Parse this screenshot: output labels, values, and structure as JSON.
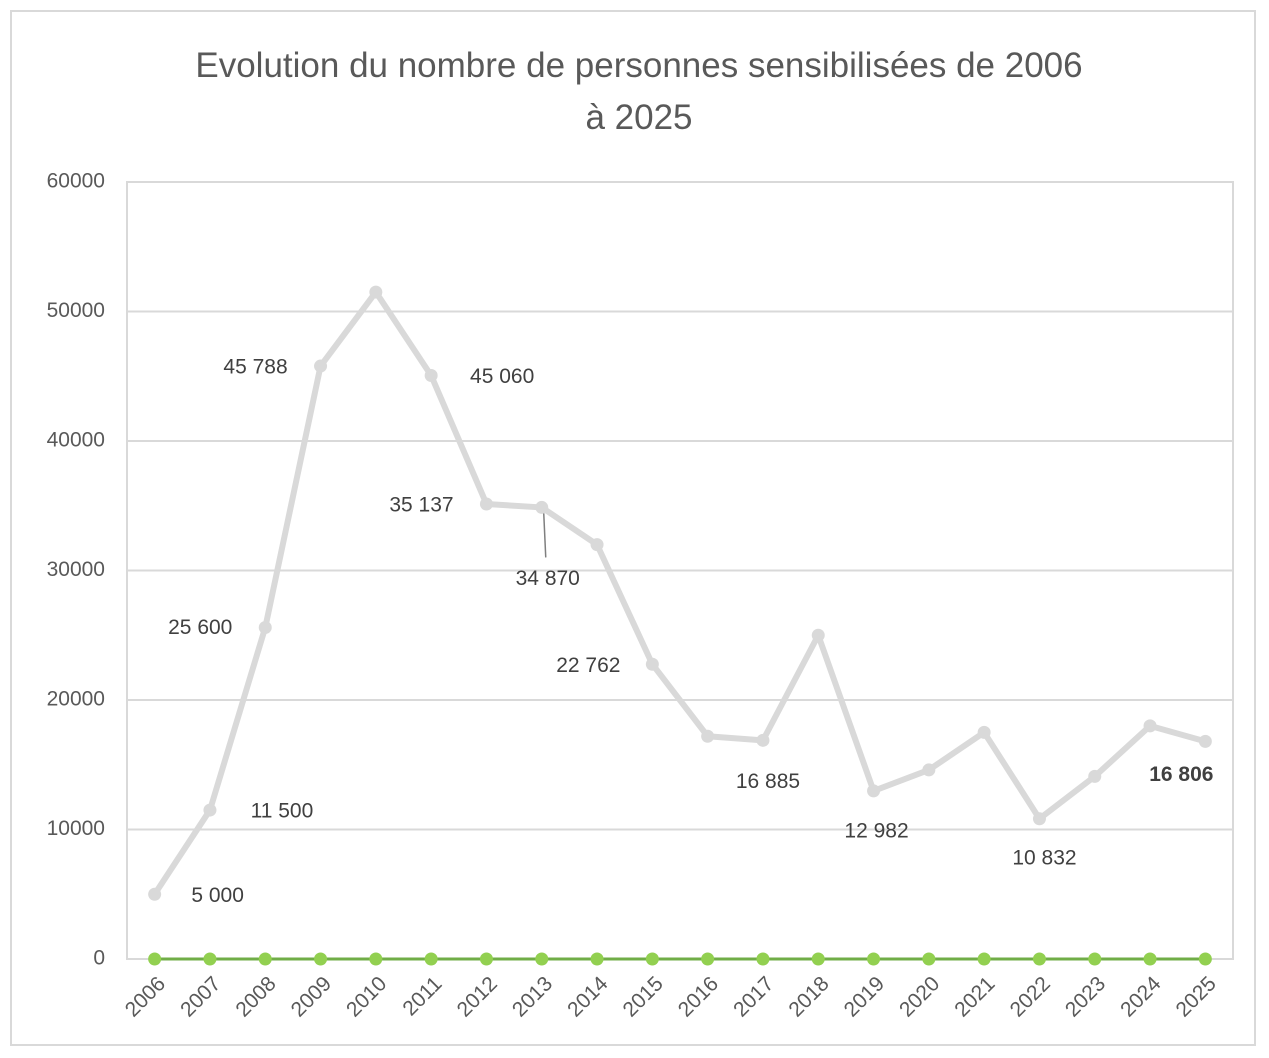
{
  "chart_data": {
    "type": "line",
    "title": "Evolution du nombre de personnes sensibilisées de 2006 à 2025",
    "categories": [
      "2006",
      "2007",
      "2008",
      "2009",
      "2010",
      "2011",
      "2012",
      "2013",
      "2014",
      "2015",
      "2016",
      "2017",
      "2018",
      "2019",
      "2020",
      "2021",
      "2022",
      "2023",
      "2024",
      "2025"
    ],
    "series": [
      {
        "color": "#d9d9d9",
        "values": [
          5000,
          11500,
          25600,
          45788,
          51500,
          45060,
          35137,
          34870,
          32000,
          22762,
          17200,
          16885,
          25000,
          12982,
          14600,
          17500,
          10832,
          14100,
          18000,
          16806
        ],
        "value_labels": [
          "5 000",
          "11 500",
          "25 600",
          "45 788",
          null,
          "45 060",
          "35 137",
          "34 870",
          null,
          "22 762",
          null,
          "16 885",
          null,
          "12 982",
          null,
          null,
          "10 832",
          null,
          null,
          "16 806"
        ]
      },
      {
        "color": "#70ad47",
        "values": [
          0,
          0,
          0,
          0,
          0,
          0,
          0,
          0,
          0,
          0,
          0,
          0,
          0,
          0,
          0,
          0,
          0,
          0,
          0,
          0
        ]
      }
    ],
    "ylim": [
      0,
      60000
    ],
    "yticks": [
      0,
      10000,
      20000,
      30000,
      40000,
      50000,
      60000
    ],
    "grid": true
  }
}
